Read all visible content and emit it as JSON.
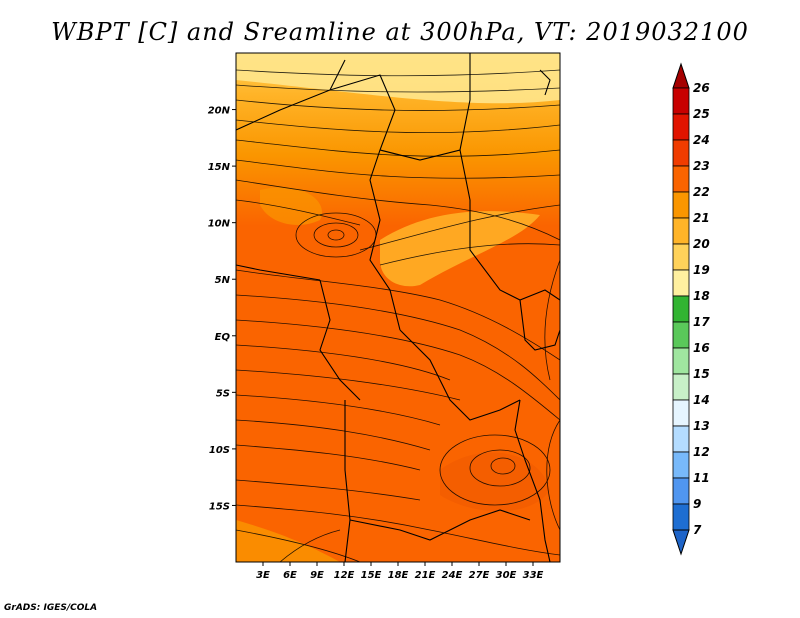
{
  "title": "WBPT [C] and Sreamline at 300hPa, VT: 2019032100",
  "credit": "GrADS: IGES/COLA",
  "map": {
    "lon_range": [
      0,
      36
    ],
    "lat_range": [
      -20,
      25
    ],
    "x_ticks": [
      {
        "lon": 3,
        "label": "3E"
      },
      {
        "lon": 6,
        "label": "6E"
      },
      {
        "lon": 9,
        "label": "9E"
      },
      {
        "lon": 12,
        "label": "12E"
      },
      {
        "lon": 15,
        "label": "15E"
      },
      {
        "lon": 18,
        "label": "18E"
      },
      {
        "lon": 21,
        "label": "21E"
      },
      {
        "lon": 24,
        "label": "24E"
      },
      {
        "lon": 27,
        "label": "27E"
      },
      {
        "lon": 30,
        "label": "30E"
      },
      {
        "lon": 33,
        "label": "33E"
      }
    ],
    "y_ticks": [
      {
        "lat": 20,
        "label": "20N"
      },
      {
        "lat": 15,
        "label": "15N"
      },
      {
        "lat": 10,
        "label": "10N"
      },
      {
        "lat": 5,
        "label": "5N"
      },
      {
        "lat": 0,
        "label": "EQ"
      },
      {
        "lat": -5,
        "label": "5S"
      },
      {
        "lat": -10,
        "label": "10S"
      },
      {
        "lat": -15,
        "label": "15S"
      }
    ]
  },
  "colorbar": {
    "levels": [
      "26",
      "25",
      "24",
      "23",
      "22",
      "21",
      "20",
      "19",
      "18",
      "17",
      "16",
      "15",
      "14",
      "13",
      "12",
      "11",
      "9",
      "7"
    ],
    "colors": [
      "#a50000",
      "#c80000",
      "#e11400",
      "#f03c00",
      "#fa6400",
      "#fa9600",
      "#ffb428",
      "#ffd25a",
      "#fff0a0",
      "#32b432",
      "#5ac85a",
      "#a0e6a0",
      "#c8f0c8",
      "#e6f5ff",
      "#b4dcff",
      "#78b9fa",
      "#5096f0",
      "#1e6ed2",
      "#0a50be"
    ],
    "top_color": "#a50000",
    "bottom_color": "#1e64c8"
  }
}
